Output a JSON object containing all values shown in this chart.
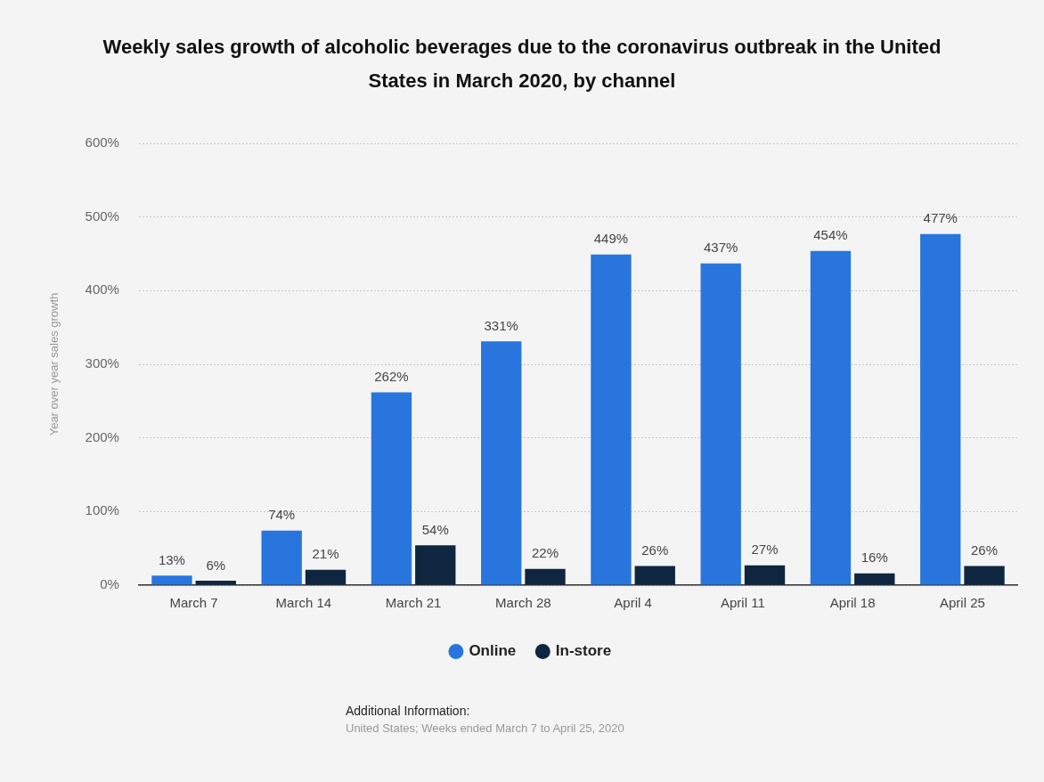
{
  "chart_data": {
    "type": "bar",
    "title": "Weekly sales growth of alcoholic beverages due to the coronavirus outbreak in the United States in March 2020, by channel",
    "ylabel": "Year over year sales growth",
    "categories": [
      "March 7",
      "March 14",
      "March 21",
      "March 28",
      "April 4",
      "April 11",
      "April 18",
      "April 25"
    ],
    "series": [
      {
        "name": "Online",
        "color": "#2876dd",
        "values": [
          13,
          74,
          262,
          331,
          449,
          437,
          454,
          477
        ],
        "value_labels": [
          "13%",
          "74%",
          "262%",
          "331%",
          "449%",
          "437%",
          "454%",
          "477%"
        ]
      },
      {
        "name": "In-store",
        "color": "#0f2640",
        "values": [
          6,
          21,
          54,
          22,
          26,
          27,
          16,
          26
        ],
        "value_labels": [
          "6%",
          "21%",
          "54%",
          "22%",
          "26%",
          "27%",
          "16%",
          "26%"
        ]
      }
    ],
    "ylim": [
      0,
      600
    ],
    "yticks": [
      {
        "value": 0,
        "label": "0%"
      },
      {
        "value": 100,
        "label": "100%"
      },
      {
        "value": 200,
        "label": "200%"
      },
      {
        "value": 300,
        "label": "300%"
      },
      {
        "value": 400,
        "label": "400%"
      },
      {
        "value": 500,
        "label": "500%"
      },
      {
        "value": 600,
        "label": "600%"
      }
    ],
    "grid": "y",
    "legend": "bottom",
    "annotations": [
      "Additional Information:",
      "United States; Weeks ended March 7 to April 25, 2020"
    ]
  }
}
